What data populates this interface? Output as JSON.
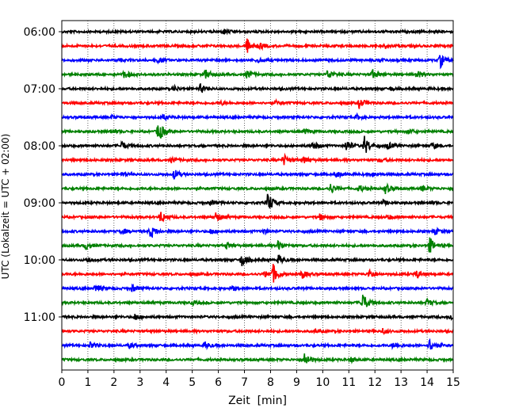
{
  "chart_data": {
    "type": "line",
    "chart_kind": "helicorder",
    "title": "",
    "xlabel": "Zeit  [min]",
    "ylabel": "UTC (Lokalzeit = UTC + 02:00)",
    "xlim": [
      0,
      15
    ],
    "x_ticks": [
      "0",
      "1",
      "2",
      "3",
      "4",
      "5",
      "6",
      "7",
      "8",
      "9",
      "10",
      "11",
      "12",
      "13",
      "14",
      "15"
    ],
    "y_tick_labels": [
      "06:00",
      "07:00",
      "08:00",
      "09:00",
      "10:00",
      "11:00"
    ],
    "trace_minutes": 15,
    "grid": "vertical dotted at every minute",
    "legend": "none",
    "colors_cycle": [
      "#000000",
      "#ff0000",
      "#0000ff",
      "#008000"
    ],
    "series": [
      {
        "start": "06:00",
        "color": "#000000",
        "events": [
          [
            6.2,
            3
          ]
        ]
      },
      {
        "start": "06:15",
        "color": "#ff0000",
        "events": [
          [
            7.1,
            9
          ],
          [
            7.6,
            3
          ],
          [
            12.4,
            2
          ]
        ]
      },
      {
        "start": "06:30",
        "color": "#0000ff",
        "events": [
          [
            2.2,
            2
          ],
          [
            3.7,
            3
          ],
          [
            7.5,
            3
          ],
          [
            14.5,
            9
          ],
          [
            12.2,
            2
          ]
        ]
      },
      {
        "start": "06:45",
        "color": "#008000",
        "events": [
          [
            2.4,
            5
          ],
          [
            5.5,
            6
          ],
          [
            7.1,
            5
          ],
          [
            10.2,
            6
          ],
          [
            11.9,
            6
          ],
          [
            13.6,
            5
          ]
        ]
      },
      {
        "start": "07:00",
        "color": "#000000",
        "events": [
          [
            4.3,
            3
          ],
          [
            5.3,
            5
          ],
          [
            12.6,
            2
          ]
        ]
      },
      {
        "start": "07:15",
        "color": "#ff0000",
        "events": [
          [
            11.4,
            6
          ],
          [
            6.1,
            2
          ],
          [
            8.2,
            2
          ]
        ]
      },
      {
        "start": "07:30",
        "color": "#0000ff",
        "events": [
          [
            1.9,
            2
          ],
          [
            3.9,
            3
          ],
          [
            11.3,
            3
          ]
        ]
      },
      {
        "start": "07:45",
        "color": "#008000",
        "events": [
          [
            3.7,
            13
          ],
          [
            1.9,
            3
          ],
          [
            9.3,
            3
          ],
          [
            13.3,
            3
          ]
        ]
      },
      {
        "start": "08:00",
        "color": "#000000",
        "events": [
          [
            2.3,
            5
          ],
          [
            9.6,
            6
          ],
          [
            10.9,
            7
          ],
          [
            11.6,
            12
          ],
          [
            12.5,
            4
          ],
          [
            14.2,
            4
          ]
        ]
      },
      {
        "start": "08:15",
        "color": "#ff0000",
        "events": [
          [
            4.2,
            3
          ],
          [
            8.5,
            7
          ],
          [
            9.3,
            4
          ],
          [
            12.2,
            2
          ]
        ]
      },
      {
        "start": "08:30",
        "color": "#0000ff",
        "events": [
          [
            2.3,
            2
          ],
          [
            4.3,
            6
          ],
          [
            10.5,
            4
          ],
          [
            11.9,
            3
          ]
        ]
      },
      {
        "start": "08:45",
        "color": "#008000",
        "events": [
          [
            10.3,
            6
          ],
          [
            11.4,
            4
          ],
          [
            12.4,
            6
          ],
          [
            13.8,
            3
          ]
        ]
      },
      {
        "start": "09:00",
        "color": "#000000",
        "events": [
          [
            5.7,
            3
          ],
          [
            7.9,
            13
          ],
          [
            12.3,
            3
          ],
          [
            14.1,
            2
          ]
        ]
      },
      {
        "start": "09:15",
        "color": "#ff0000",
        "events": [
          [
            3.8,
            7
          ],
          [
            5.9,
            6
          ],
          [
            9.9,
            4
          ],
          [
            12.5,
            3
          ]
        ]
      },
      {
        "start": "09:30",
        "color": "#0000ff",
        "events": [
          [
            2.3,
            4
          ],
          [
            3.4,
            8
          ],
          [
            5.7,
            3
          ],
          [
            7.7,
            3
          ],
          [
            14.3,
            4
          ]
        ]
      },
      {
        "start": "09:45",
        "color": "#008000",
        "events": [
          [
            0.9,
            5
          ],
          [
            6.3,
            4
          ],
          [
            8.3,
            6
          ],
          [
            14.1,
            10
          ]
        ]
      },
      {
        "start": "10:00",
        "color": "#000000",
        "events": [
          [
            1.0,
            3
          ],
          [
            6.9,
            8
          ],
          [
            8.3,
            6
          ]
        ]
      },
      {
        "start": "10:15",
        "color": "#ff0000",
        "events": [
          [
            7.8,
            4
          ],
          [
            8.1,
            11
          ],
          [
            9.2,
            5
          ],
          [
            11.8,
            6
          ],
          [
            13.6,
            5
          ]
        ]
      },
      {
        "start": "10:30",
        "color": "#0000ff",
        "events": [
          [
            1.3,
            5
          ],
          [
            2.7,
            4
          ],
          [
            6.5,
            3
          ]
        ]
      },
      {
        "start": "10:45",
        "color": "#008000",
        "events": [
          [
            11.5,
            14
          ],
          [
            14.0,
            4
          ],
          [
            5.0,
            2
          ]
        ]
      },
      {
        "start": "11:00",
        "color": "#000000",
        "events": [
          [
            2.8,
            4
          ],
          [
            14.9,
            4
          ]
        ]
      },
      {
        "start": "11:15",
        "color": "#ff0000",
        "events": [
          [
            12.3,
            3
          ],
          [
            9.7,
            2
          ]
        ]
      },
      {
        "start": "11:30",
        "color": "#0000ff",
        "events": [
          [
            1.1,
            4
          ],
          [
            2.6,
            3
          ],
          [
            5.5,
            4
          ],
          [
            12.7,
            4
          ],
          [
            14.1,
            8
          ]
        ]
      },
      {
        "start": "11:45",
        "color": "#008000",
        "events": [
          [
            9.3,
            9
          ],
          [
            11.1,
            3
          ]
        ]
      }
    ]
  }
}
